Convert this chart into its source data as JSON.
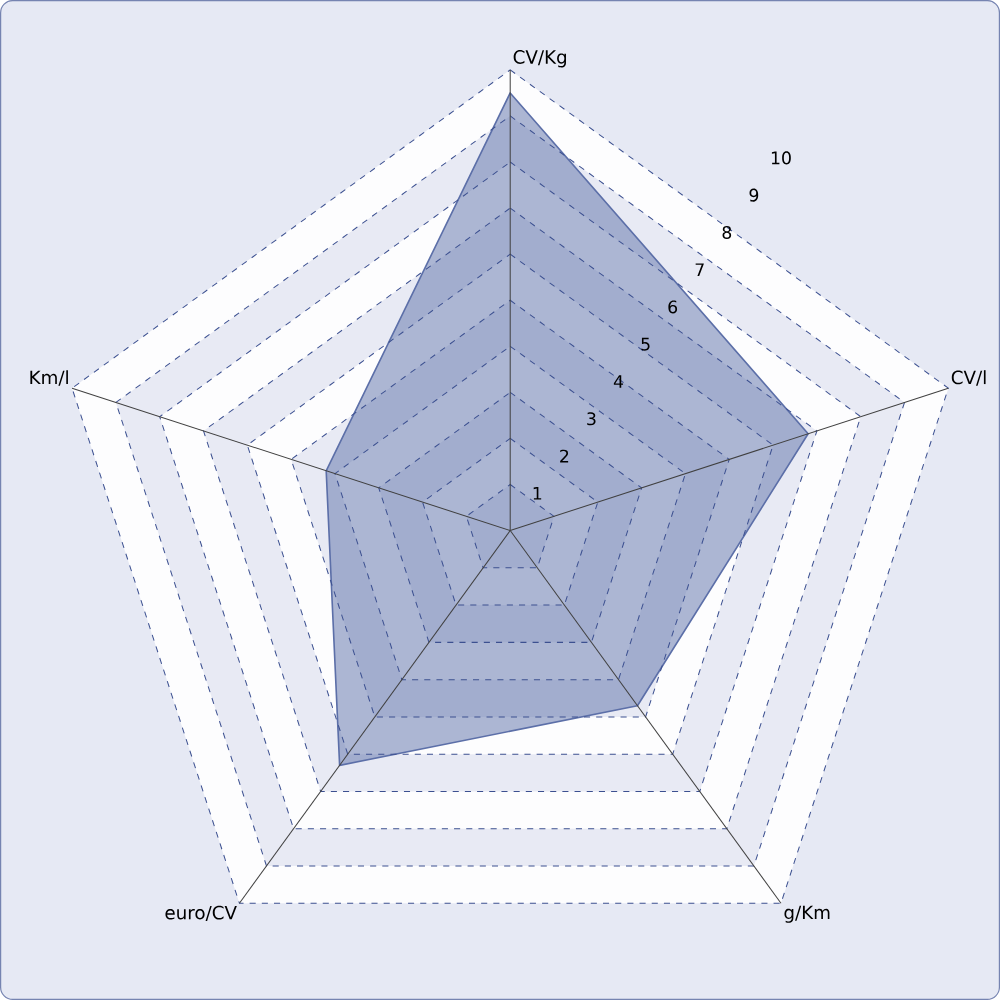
{
  "chart_data": {
    "type": "radar",
    "categories": [
      "CV/Kg",
      "CV/l",
      "g/Km",
      "euro/CV",
      "Km/l"
    ],
    "series": [
      {
        "color": "#5c6fa8",
        "values": [
          9.5,
          6.8,
          4.7,
          6.3,
          4.2
        ]
      }
    ],
    "ylim": [
      0,
      10
    ],
    "yticks": [
      1,
      2,
      3,
      4,
      5,
      6,
      7,
      8,
      9,
      10
    ],
    "grid": true
  }
}
